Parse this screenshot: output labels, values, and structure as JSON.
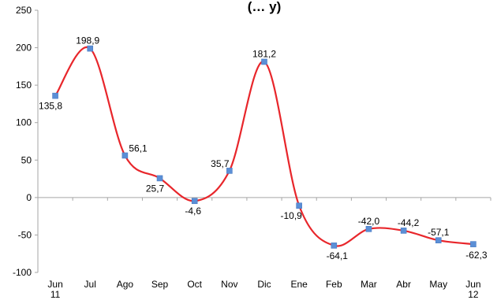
{
  "chart_data": {
    "type": "line",
    "title_fragment": "(… y)",
    "categories": [
      {
        "line1": "Jun",
        "line2": "11"
      },
      {
        "line1": "Jul",
        "line2": ""
      },
      {
        "line1": "Ago",
        "line2": ""
      },
      {
        "line1": "Sep",
        "line2": ""
      },
      {
        "line1": "Oct",
        "line2": ""
      },
      {
        "line1": "Nov",
        "line2": ""
      },
      {
        "line1": "Dic",
        "line2": ""
      },
      {
        "line1": "Ene",
        "line2": ""
      },
      {
        "line1": "Feb",
        "line2": ""
      },
      {
        "line1": "Mar",
        "line2": ""
      },
      {
        "line1": "Abr",
        "line2": ""
      },
      {
        "line1": "May",
        "line2": ""
      },
      {
        "line1": "Jun",
        "line2": "12"
      }
    ],
    "values": [
      135.8,
      198.9,
      56.1,
      25.7,
      -4.6,
      35.7,
      181.2,
      -10.9,
      -64.1,
      -42.0,
      -44.2,
      -57.1,
      -62.3
    ],
    "value_labels": [
      "135,8",
      "198,9",
      "56,1",
      "25,7",
      "-4,6",
      "35,7",
      "181,2",
      "-10,9",
      "-64,1",
      "-42,0",
      "-44,2",
      "-57,1",
      "-62,3"
    ],
    "ylim": [
      -100,
      250
    ],
    "yticks": [
      -100,
      -50,
      0,
      50,
      100,
      150,
      200,
      250
    ],
    "grid": false,
    "smooth": true,
    "line_color": "#e8262b",
    "marker_color": "#5b8fd6",
    "axis_color": "#a6a6a6"
  }
}
